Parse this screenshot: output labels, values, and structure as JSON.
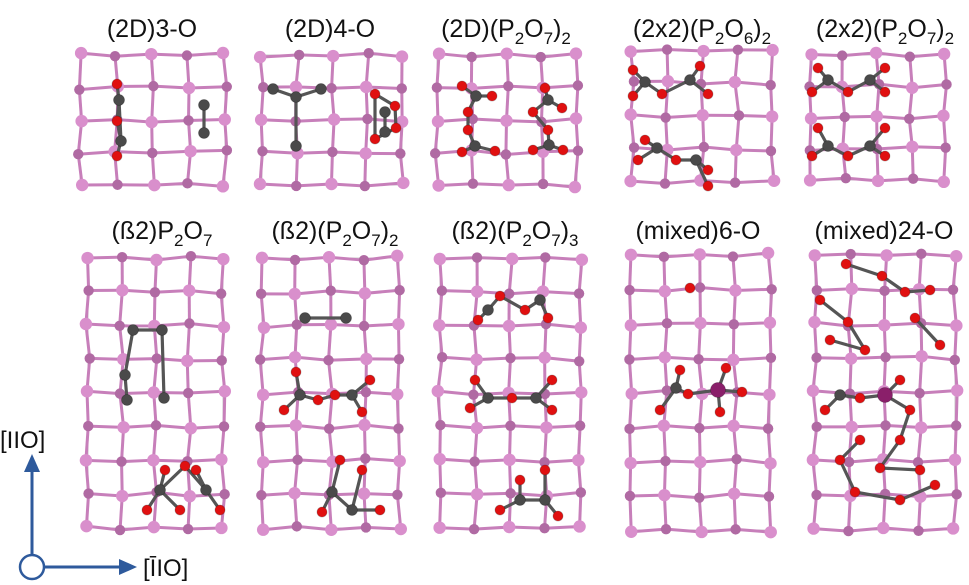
{
  "colors": {
    "phosphorus": "#d98fcc",
    "phosphorus_shade": "#b06aa3",
    "bond": "#c77fba",
    "carbon": "#4a4a4a",
    "oxygen": "#e01010",
    "dopant": "#8a1f6a",
    "cell": "#c8c8c8",
    "axis": "#2e5a9c"
  },
  "panels": [
    {
      "title_parts": [
        "(2D)3-O"
      ]
    },
    {
      "title_parts": [
        "(2D)4-O"
      ]
    },
    {
      "title_parts": [
        "(2D)(P",
        "2",
        "O",
        "7",
        ")",
        "2"
      ]
    },
    {
      "title_parts": [
        "(2x2)(P",
        "2",
        "O",
        "6",
        ")",
        "2"
      ]
    },
    {
      "title_parts": [
        "(2x2)(P",
        "2",
        "O",
        "7",
        ")",
        "2"
      ]
    },
    {
      "title_parts": [
        "(ß2)P",
        "2",
        "O",
        "7"
      ]
    },
    {
      "title_parts": [
        "(ß2)(P",
        "2",
        "O",
        "7",
        ")",
        "2"
      ]
    },
    {
      "title_parts": [
        "(ß2)(P",
        "2",
        "O",
        "7",
        ")",
        "3"
      ]
    },
    {
      "title_parts": [
        "(mixed)6-O"
      ]
    },
    {
      "title_parts": [
        "(mixed)24-O"
      ]
    }
  ],
  "axes": {
    "vertical_label": "[IIO]",
    "horizontal_label": "[ĪIO]"
  }
}
